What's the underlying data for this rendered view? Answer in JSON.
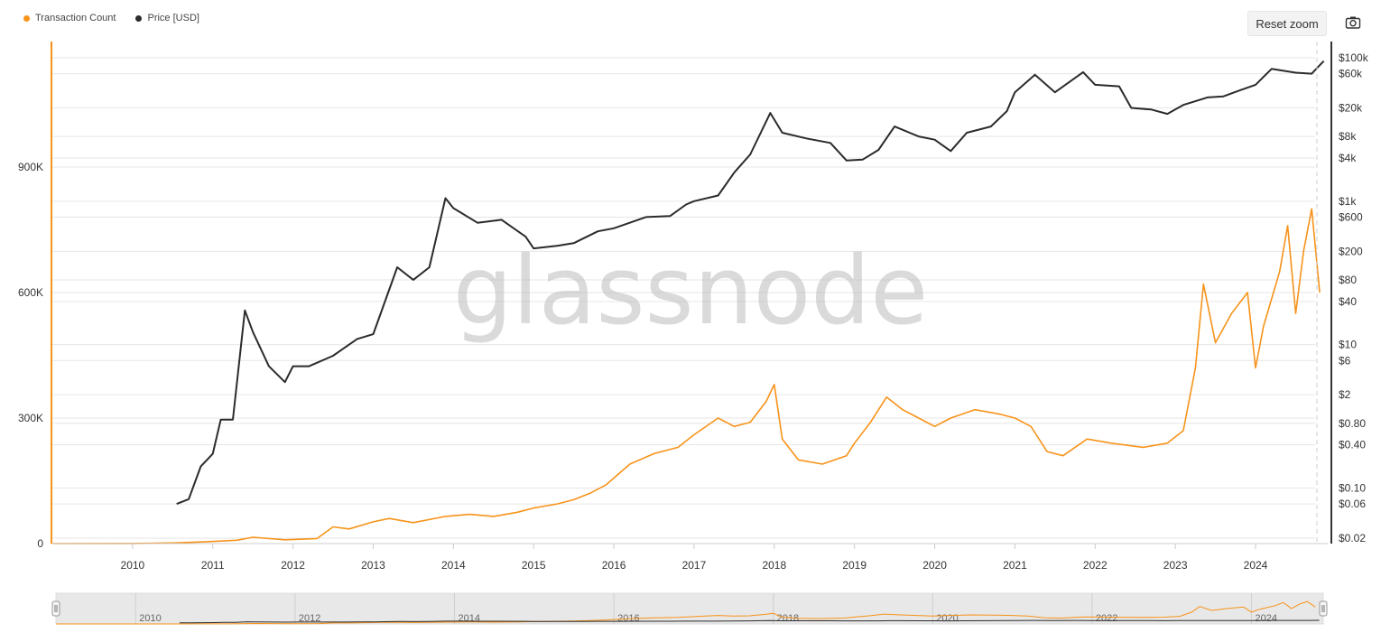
{
  "legend": {
    "tx_label": "Transaction Count",
    "price_label": "Price [USD]"
  },
  "toolbar": {
    "reset_zoom_label": "Reset zoom",
    "screenshot_icon": "camera-icon"
  },
  "watermark": "glassnode",
  "colors": {
    "tx": "#f7931a",
    "price": "#2b2b2b",
    "grid": "#e6e6e6",
    "navigator_bg": "#e8e8e8"
  },
  "chart_data": {
    "type": "line",
    "x_axis": {
      "ticks": [
        "2010",
        "2011",
        "2012",
        "2013",
        "2014",
        "2015",
        "2016",
        "2017",
        "2018",
        "2019",
        "2020",
        "2021",
        "2022",
        "2023",
        "2024"
      ],
      "range": [
        2009.0,
        2024.9
      ]
    },
    "y_left": {
      "ticks": [
        "0",
        "300K",
        "600K",
        "900K"
      ],
      "values": [
        0,
        300000,
        600000,
        900000
      ],
      "range": [
        0,
        1200000
      ]
    },
    "y_right": {
      "scale": "log",
      "ticks": [
        "$0.02",
        "$0.06",
        "$0.10",
        "$0.40",
        "$0.80",
        "$2",
        "$6",
        "$10",
        "$40",
        "$80",
        "$200",
        "$600",
        "$1k",
        "$4k",
        "$8k",
        "$20k",
        "$60k",
        "$100k"
      ],
      "values": [
        0.02,
        0.06,
        0.1,
        0.4,
        0.8,
        2,
        6,
        10,
        40,
        80,
        200,
        600,
        1000,
        4000,
        8000,
        20000,
        60000,
        100000
      ],
      "range": [
        0.02,
        100000
      ]
    },
    "series": [
      {
        "name": "Transaction Count",
        "axis": "left",
        "points": [
          [
            2009.0,
            0
          ],
          [
            2010.0,
            300
          ],
          [
            2010.5,
            1500
          ],
          [
            2010.9,
            4000
          ],
          [
            2011.3,
            8000
          ],
          [
            2011.5,
            15000
          ],
          [
            2011.9,
            9000
          ],
          [
            2012.3,
            12000
          ],
          [
            2012.5,
            40000
          ],
          [
            2012.7,
            35000
          ],
          [
            2013.0,
            52000
          ],
          [
            2013.2,
            60000
          ],
          [
            2013.5,
            50000
          ],
          [
            2013.9,
            65000
          ],
          [
            2014.2,
            70000
          ],
          [
            2014.5,
            65000
          ],
          [
            2014.8,
            75000
          ],
          [
            2015.0,
            85000
          ],
          [
            2015.3,
            95000
          ],
          [
            2015.5,
            105000
          ],
          [
            2015.7,
            120000
          ],
          [
            2015.9,
            140000
          ],
          [
            2016.2,
            190000
          ],
          [
            2016.5,
            215000
          ],
          [
            2016.8,
            230000
          ],
          [
            2017.0,
            260000
          ],
          [
            2017.3,
            300000
          ],
          [
            2017.5,
            280000
          ],
          [
            2017.7,
            290000
          ],
          [
            2017.9,
            340000
          ],
          [
            2018.0,
            380000
          ],
          [
            2018.1,
            250000
          ],
          [
            2018.3,
            200000
          ],
          [
            2018.6,
            190000
          ],
          [
            2018.9,
            210000
          ],
          [
            2019.0,
            240000
          ],
          [
            2019.2,
            290000
          ],
          [
            2019.4,
            350000
          ],
          [
            2019.6,
            320000
          ],
          [
            2019.8,
            300000
          ],
          [
            2020.0,
            280000
          ],
          [
            2020.2,
            300000
          ],
          [
            2020.5,
            320000
          ],
          [
            2020.8,
            310000
          ],
          [
            2021.0,
            300000
          ],
          [
            2021.2,
            280000
          ],
          [
            2021.4,
            220000
          ],
          [
            2021.6,
            210000
          ],
          [
            2021.9,
            250000
          ],
          [
            2022.2,
            240000
          ],
          [
            2022.6,
            230000
          ],
          [
            2022.9,
            240000
          ],
          [
            2023.1,
            270000
          ],
          [
            2023.25,
            420000
          ],
          [
            2023.35,
            620000
          ],
          [
            2023.5,
            480000
          ],
          [
            2023.7,
            550000
          ],
          [
            2023.9,
            600000
          ],
          [
            2024.0,
            420000
          ],
          [
            2024.1,
            520000
          ],
          [
            2024.3,
            650000
          ],
          [
            2024.4,
            760000
          ],
          [
            2024.5,
            550000
          ],
          [
            2024.6,
            700000
          ],
          [
            2024.7,
            800000
          ],
          [
            2024.8,
            600000
          ]
        ]
      },
      {
        "name": "Price [USD]",
        "axis": "right",
        "points": [
          [
            2010.55,
            0.06
          ],
          [
            2010.7,
            0.07
          ],
          [
            2010.85,
            0.2
          ],
          [
            2011.0,
            0.3
          ],
          [
            2011.1,
            0.9
          ],
          [
            2011.25,
            0.9
          ],
          [
            2011.4,
            30
          ],
          [
            2011.5,
            15
          ],
          [
            2011.7,
            5
          ],
          [
            2011.9,
            3
          ],
          [
            2012.0,
            5
          ],
          [
            2012.2,
            5
          ],
          [
            2012.5,
            7
          ],
          [
            2012.8,
            12
          ],
          [
            2013.0,
            14
          ],
          [
            2013.3,
            120
          ],
          [
            2013.5,
            80
          ],
          [
            2013.7,
            120
          ],
          [
            2013.9,
            1100
          ],
          [
            2014.0,
            800
          ],
          [
            2014.3,
            500
          ],
          [
            2014.6,
            550
          ],
          [
            2014.9,
            320
          ],
          [
            2015.0,
            220
          ],
          [
            2015.3,
            240
          ],
          [
            2015.5,
            260
          ],
          [
            2015.8,
            380
          ],
          [
            2016.0,
            420
          ],
          [
            2016.4,
            600
          ],
          [
            2016.7,
            620
          ],
          [
            2016.9,
            900
          ],
          [
            2017.0,
            1000
          ],
          [
            2017.3,
            1200
          ],
          [
            2017.5,
            2500
          ],
          [
            2017.7,
            4500
          ],
          [
            2017.95,
            17000
          ],
          [
            2018.1,
            9000
          ],
          [
            2018.4,
            7500
          ],
          [
            2018.7,
            6500
          ],
          [
            2018.9,
            3700
          ],
          [
            2019.1,
            3800
          ],
          [
            2019.3,
            5200
          ],
          [
            2019.5,
            11000
          ],
          [
            2019.8,
            8000
          ],
          [
            2020.0,
            7200
          ],
          [
            2020.2,
            5000
          ],
          [
            2020.4,
            9000
          ],
          [
            2020.7,
            11000
          ],
          [
            2020.9,
            18000
          ],
          [
            2021.0,
            33000
          ],
          [
            2021.25,
            58000
          ],
          [
            2021.5,
            33000
          ],
          [
            2021.85,
            63000
          ],
          [
            2022.0,
            42000
          ],
          [
            2022.3,
            40000
          ],
          [
            2022.45,
            20000
          ],
          [
            2022.7,
            19000
          ],
          [
            2022.9,
            16500
          ],
          [
            2023.1,
            22000
          ],
          [
            2023.4,
            28000
          ],
          [
            2023.6,
            29000
          ],
          [
            2023.8,
            35000
          ],
          [
            2024.0,
            42000
          ],
          [
            2024.2,
            70000
          ],
          [
            2024.5,
            62000
          ],
          [
            2024.7,
            60000
          ],
          [
            2024.85,
            90000
          ]
        ]
      }
    ]
  },
  "navigator": {
    "labels": [
      "2010",
      "2012",
      "2014",
      "2016",
      "2018",
      "2020",
      "2022",
      "2024"
    ]
  }
}
